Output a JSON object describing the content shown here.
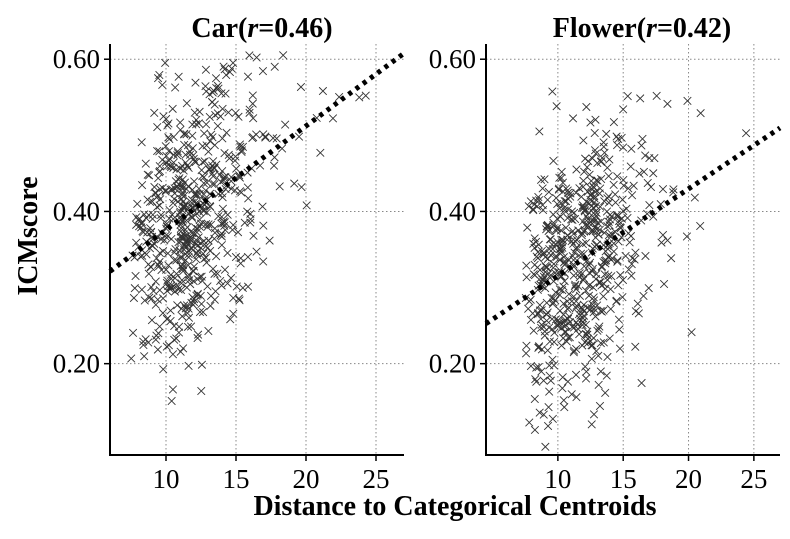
{
  "chart_data": [
    {
      "type": "scatter",
      "title_prefix": "Car(",
      "title_r": "r",
      "title_suffix": "=0.46)",
      "xlabel": "Distance to Categorical Centroids",
      "ylabel": "ICMscore",
      "xlim": [
        6,
        27
      ],
      "ylim": [
        0.08,
        0.62
      ],
      "xticks": [
        10,
        15,
        20,
        25
      ],
      "yticks": [
        0.2,
        0.4,
        0.6
      ],
      "ytick_labels": [
        "0.20",
        "0.40",
        "0.60"
      ],
      "xtick_labels": [
        "10",
        "15",
        "20",
        "25"
      ],
      "grid": true,
      "trend": {
        "slope": 0.01364,
        "intercept": 0.2395
      },
      "points_summary": {
        "n": 600,
        "x_mean": 11.8,
        "x_sd": 2.5,
        "x_min": 7.5,
        "x_max": 25,
        "y_sd": 0.082,
        "y_min": 0.14,
        "y_max": 0.61,
        "seed": 7
      }
    },
    {
      "type": "scatter",
      "title_prefix": "Flower(",
      "title_r": "r",
      "title_suffix": "=0.42)",
      "xlabel": "Distance to Categorical Centroids",
      "ylabel": "ICMscore",
      "xlim": [
        4.5,
        27
      ],
      "ylim": [
        0.08,
        0.62
      ],
      "xticks": [
        10,
        15,
        20,
        25
      ],
      "yticks": [
        0.2,
        0.4,
        0.6
      ],
      "ytick_labels": [
        "0.20",
        "0.40",
        "0.60"
      ],
      "xtick_labels": [
        "10",
        "15",
        "20",
        "25"
      ],
      "grid": true,
      "trend": {
        "slope": 0.01143,
        "intercept": 0.2011
      },
      "points_summary": {
        "n": 600,
        "x_mean": 11.5,
        "x_sd": 2.6,
        "x_min": 7.5,
        "x_max": 25,
        "y_sd": 0.085,
        "y_min": 0.09,
        "y_max": 0.58,
        "seed": 23
      }
    }
  ],
  "shared_xlabel": "Distance to Categorical Centroids",
  "shared_ylabel": "ICMscore"
}
